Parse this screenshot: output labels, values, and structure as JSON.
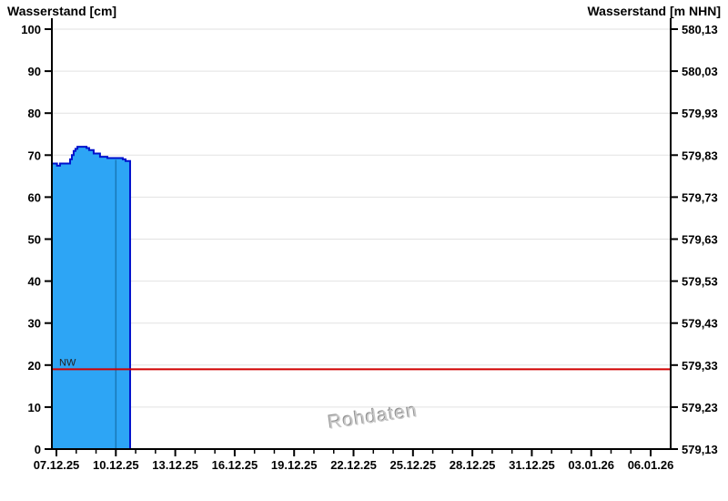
{
  "header": {
    "left_axis_title": "Wasserstand [cm]",
    "right_axis_title": "Wasserstand [m NHN]"
  },
  "watermark": "Rohdaten",
  "chart_data": {
    "type": "area",
    "title": "",
    "x_axis": {
      "tick_labels": [
        "07.12.25",
        "10.12.25",
        "13.12.25",
        "16.12.25",
        "19.12.25",
        "22.12.25",
        "25.12.25",
        "28.12.25",
        "31.12.25",
        "03.01.26",
        "06.01.26"
      ],
      "first_major_tick_day": 0.23,
      "major_tick_every_days": 3,
      "minor_tick_every_days": 1,
      "domain_days": 31.24,
      "grid": false
    },
    "y_axis_left": {
      "label": "Wasserstand [cm]",
      "min": 0,
      "max": 100,
      "tick_step": 10,
      "tick_labels": [
        "0",
        "10",
        "20",
        "30",
        "40",
        "50",
        "60",
        "70",
        "80",
        "90",
        "100"
      ],
      "grid": true
    },
    "y_axis_right": {
      "label": "Wasserstand [m NHN]",
      "tick_labels": [
        "579,13",
        "579,23",
        "579,33",
        "579,43",
        "579,53",
        "579,63",
        "579,73",
        "579,83",
        "579,93",
        "580,03",
        "580,13"
      ]
    },
    "series": [
      {
        "name": "Rohdaten",
        "unit": "cm",
        "points_day_cm": [
          [
            0.0,
            68
          ],
          [
            0.23,
            68
          ],
          [
            0.26,
            67.5
          ],
          [
            0.41,
            68
          ],
          [
            0.83,
            68
          ],
          [
            0.92,
            69
          ],
          [
            1.01,
            70
          ],
          [
            1.1,
            71
          ],
          [
            1.19,
            71.5
          ],
          [
            1.29,
            72
          ],
          [
            1.65,
            72
          ],
          [
            1.75,
            71.7
          ],
          [
            1.88,
            71.2
          ],
          [
            2.11,
            70.4
          ],
          [
            2.43,
            69.6
          ],
          [
            2.8,
            69.3
          ],
          [
            3.58,
            69.0
          ],
          [
            3.72,
            68.6
          ],
          [
            3.95,
            68.2
          ]
        ]
      }
    ],
    "reference_line": {
      "label": "NW",
      "value_cm": 19
    },
    "divider_day": 3.23,
    "colors": {
      "area_fill": "#2da5f5",
      "area_edge": "#0011cc",
      "reference_line": "#d10000",
      "grid": "#e2e2e2",
      "axis": "#000000",
      "divider": "#1878b8",
      "text": "#000000",
      "nw_label": "#222222"
    }
  }
}
